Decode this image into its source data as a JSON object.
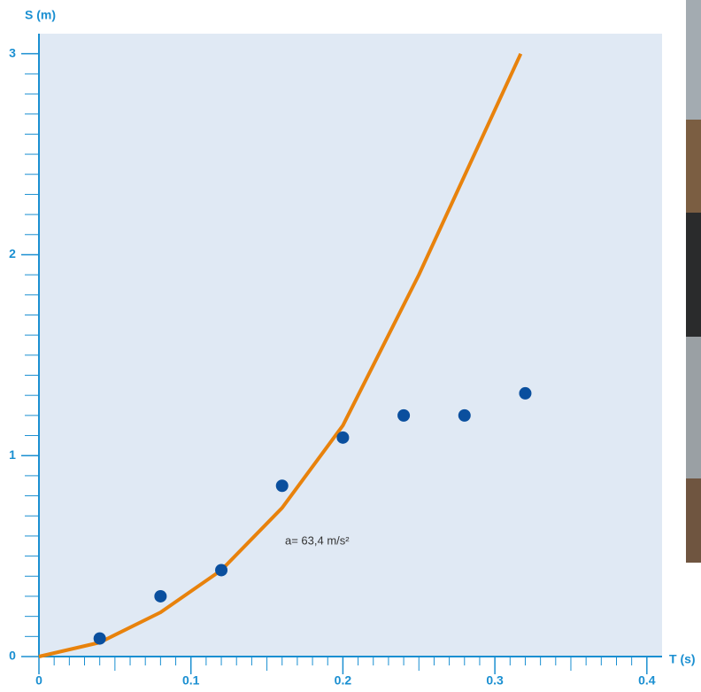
{
  "chart_data": {
    "type": "line_scatter",
    "y_label": "S (m)",
    "x_label": "T (s)",
    "annotation": "a= 63,4 m/s²",
    "xlim": [
      0,
      0.41
    ],
    "ylim": [
      0,
      3.1
    ],
    "xticks": [
      0,
      0.1,
      0.2,
      0.3,
      0.4
    ],
    "yticks": [
      0,
      1,
      2,
      3
    ],
    "axis_color": "#1a8fd1",
    "background": "#e0e9f4",
    "line": {
      "color": "#e8820c",
      "x": [
        0,
        0.04,
        0.08,
        0.12,
        0.16,
        0.2,
        0.25,
        0.317
      ],
      "values": [
        0,
        0.07,
        0.22,
        0.43,
        0.74,
        1.15,
        1.9,
        3.0
      ]
    },
    "points": {
      "color": "#0a4f9e",
      "x": [
        0.04,
        0.08,
        0.12,
        0.16,
        0.2,
        0.24,
        0.28,
        0.32
      ],
      "values": [
        0.09,
        0.3,
        0.43,
        0.85,
        1.09,
        1.2,
        1.2,
        1.31
      ]
    }
  }
}
